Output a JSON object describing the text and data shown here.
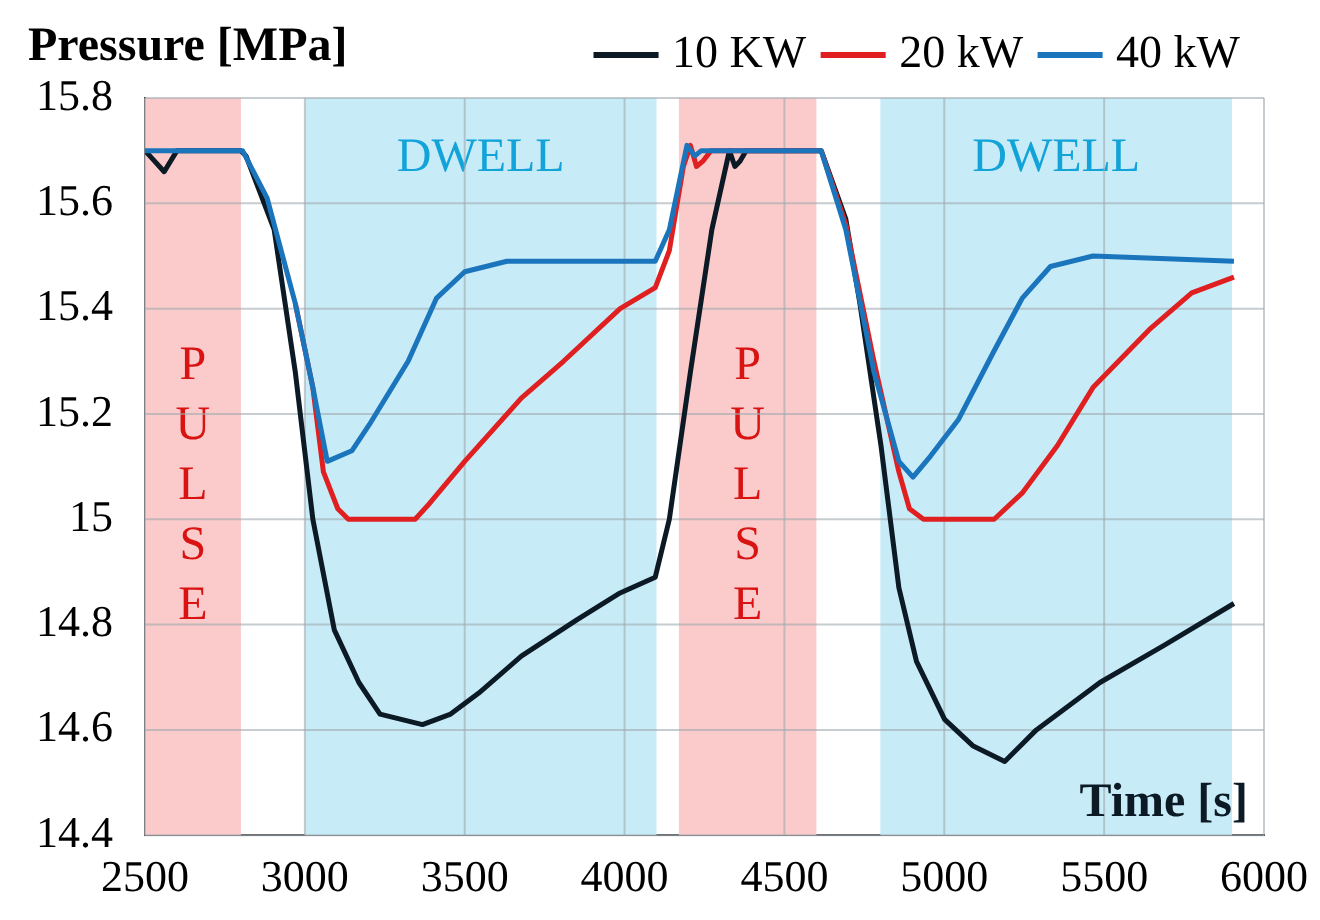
{
  "chart_data": {
    "type": "line",
    "ylabel": "Pressure [MPa]",
    "xlabel": "Time [s]",
    "xlim": [
      2500,
      6000
    ],
    "xticks": [
      2500,
      3000,
      3500,
      4000,
      4500,
      5000,
      5500,
      6000
    ],
    "ylim": [
      14.4,
      15.8
    ],
    "yticks": [
      14.4,
      14.6,
      14.8,
      15,
      15.2,
      15.4,
      15.6,
      15.8
    ],
    "grid": true,
    "legend": "top right",
    "marker": "none",
    "line_style": "solid",
    "bands": [
      {
        "axis": "x",
        "from": 2500,
        "to": 2800,
        "label": "PULSE",
        "color": "#fbcaca"
      },
      {
        "axis": "x",
        "from": 3000,
        "to": 4100,
        "label": "DWELL",
        "color": "#c8ebf8"
      },
      {
        "axis": "x",
        "from": 4170,
        "to": 4600,
        "label": "PULSE",
        "color": "#fbcaca"
      },
      {
        "axis": "x",
        "from": 4800,
        "to": 5900,
        "label": "DWELL",
        "color": "#c8ebf8"
      }
    ],
    "series": [
      {
        "name": "10 KW",
        "color": "#0b1a24",
        "x": [
          2500,
          2530,
          2560,
          2600,
          2700,
          2800,
          2816,
          2904,
          2970,
          3025,
          3092,
          3169,
          3235,
          3368,
          3456,
          3544,
          3677,
          3853,
          3986,
          4096,
          4140,
          4206,
          4273,
          4328,
          4345,
          4361,
          4380,
          4500,
          4615,
          4692,
          4736,
          4802,
          4858,
          4913,
          5001,
          5089,
          5189,
          5288,
          5487,
          5686,
          5906
        ],
        "values": [
          15.7,
          15.68,
          15.66,
          15.7,
          15.7,
          15.7,
          15.69,
          15.55,
          15.28,
          15.0,
          14.79,
          14.69,
          14.63,
          14.61,
          14.63,
          14.67,
          14.74,
          14.81,
          14.86,
          14.89,
          15.0,
          15.28,
          15.55,
          15.7,
          15.67,
          15.68,
          15.7,
          15.7,
          15.7,
          15.57,
          15.41,
          15.14,
          14.87,
          14.73,
          14.62,
          14.57,
          14.54,
          14.6,
          14.69,
          14.76,
          14.84
        ]
      },
      {
        "name": "20 kW",
        "color": "#e02020",
        "x": [
          2970,
          3025,
          3058,
          3103,
          3136,
          3213,
          3345,
          3390,
          3500,
          3677,
          3809,
          3986,
          4096,
          4140,
          4184,
          4206,
          4225,
          4245,
          4270,
          4500,
          4615,
          4692,
          4780,
          4858,
          4891,
          4935,
          5156,
          5244,
          5354,
          5465,
          5641,
          5774,
          5906
        ],
        "values": [
          15.41,
          15.25,
          15.09,
          15.02,
          15.0,
          15.0,
          15.0,
          15.03,
          15.11,
          15.23,
          15.3,
          15.4,
          15.44,
          15.51,
          15.67,
          15.71,
          15.67,
          15.68,
          15.7,
          15.7,
          15.7,
          15.56,
          15.3,
          15.09,
          15.02,
          15.0,
          15.0,
          15.05,
          15.14,
          15.25,
          15.36,
          15.43,
          15.46
        ]
      },
      {
        "name": "40 kW",
        "color": "#1b75bc",
        "x": [
          2500,
          2700,
          2805,
          2882,
          2970,
          3025,
          3070,
          3147,
          3202,
          3323,
          3412,
          3500,
          3632,
          3853,
          4096,
          4140,
          4195,
          4220,
          4240,
          4500,
          4615,
          4692,
          4780,
          4858,
          4902,
          4957,
          5045,
          5156,
          5244,
          5332,
          5465,
          5906
        ],
        "values": [
          15.7,
          15.7,
          15.7,
          15.61,
          15.41,
          15.25,
          15.11,
          15.13,
          15.18,
          15.3,
          15.42,
          15.47,
          15.49,
          15.49,
          15.49,
          15.55,
          15.71,
          15.69,
          15.7,
          15.7,
          15.7,
          15.55,
          15.28,
          15.11,
          15.08,
          15.12,
          15.19,
          15.32,
          15.42,
          15.48,
          15.5,
          15.49
        ]
      }
    ]
  }
}
